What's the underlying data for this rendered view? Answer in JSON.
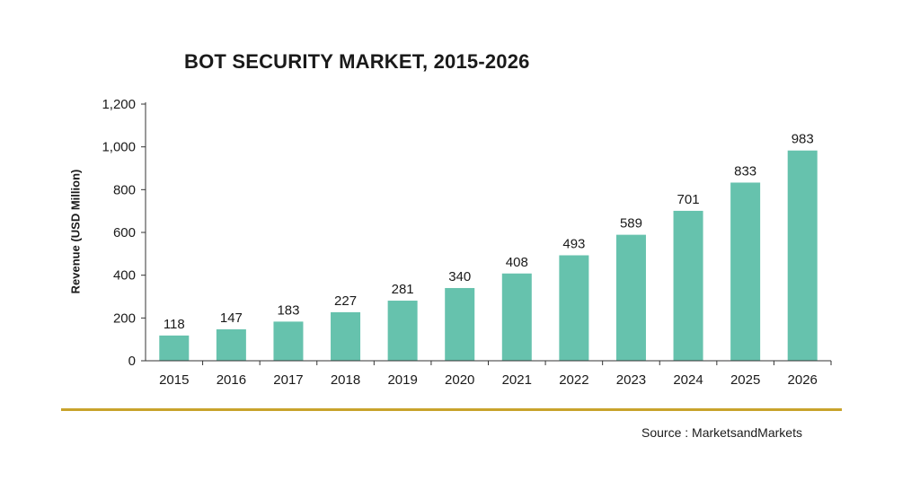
{
  "chart_data": {
    "type": "bar",
    "title": "BOT SECURITY MARKET, 2015-2026",
    "xlabel": "",
    "ylabel": "Revenue (USD Million)",
    "categories": [
      "2015",
      "2016",
      "2017",
      "2018",
      "2019",
      "2020",
      "2021",
      "2022",
      "2023",
      "2024",
      "2025",
      "2026"
    ],
    "values": [
      118,
      147,
      183,
      227,
      281,
      340,
      408,
      493,
      589,
      701,
      833,
      983
    ],
    "ylim": [
      0,
      1200
    ],
    "yticks": [
      "0",
      "200",
      "400",
      "600",
      "800",
      "1,000",
      "1,200"
    ],
    "bar_color": "#66c2ad",
    "grid": false,
    "legend": "none"
  },
  "source": "Source : MarketsandMarkets",
  "colors": {
    "rule": "#c8a32b",
    "axis": "#333333"
  }
}
